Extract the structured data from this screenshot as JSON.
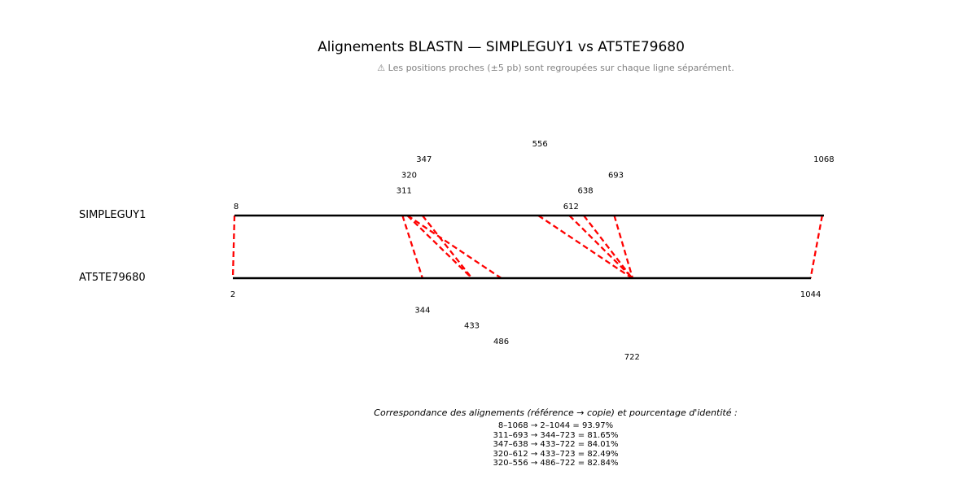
{
  "title": "Alignements BLASTN — SIMPLEGUY1 vs AT5TE79680",
  "note": "⚠ Les positions proches (±5 pb) sont regroupées sur chaque ligne séparément.",
  "reference": {
    "name": "SIMPLEGUY1",
    "start": 8,
    "end": 1068
  },
  "copy": {
    "name": "AT5TE79680",
    "start": 2,
    "end": 1044
  },
  "link_color": "#ff0000",
  "chart_data": {
    "type": "alignment-map",
    "alignments": [
      {
        "ref_start": 8,
        "ref_end": 1068,
        "copy_start": 2,
        "copy_end": 1044,
        "identity": 93.97
      },
      {
        "ref_start": 311,
        "ref_end": 693,
        "copy_start": 344,
        "copy_end": 723,
        "identity": 81.65
      },
      {
        "ref_start": 347,
        "ref_end": 638,
        "copy_start": 433,
        "copy_end": 722,
        "identity": 84.01
      },
      {
        "ref_start": 320,
        "ref_end": 612,
        "copy_start": 433,
        "copy_end": 723,
        "identity": 82.49
      },
      {
        "ref_start": 320,
        "ref_end": 556,
        "copy_start": 486,
        "copy_end": 722,
        "identity": 82.84
      }
    ],
    "ref_tick_labels": [
      "8",
      "311",
      "320",
      "347",
      "556",
      "612",
      "638",
      "693",
      "1068"
    ],
    "copy_tick_labels": [
      "2",
      "344",
      "433",
      "486",
      "722",
      "1044"
    ]
  },
  "legend": {
    "title": "Correspondance des alignements (référence → copie) et pourcentage d'identité :",
    "lines": [
      "8–1068 → 2–1044 = 93.97%",
      "311–693 → 344–723 = 81.65%",
      "347–638 → 433–722 = 84.01%",
      "320–612 → 433–723 = 82.49%",
      "320–556 → 486–722 = 82.84%"
    ]
  }
}
